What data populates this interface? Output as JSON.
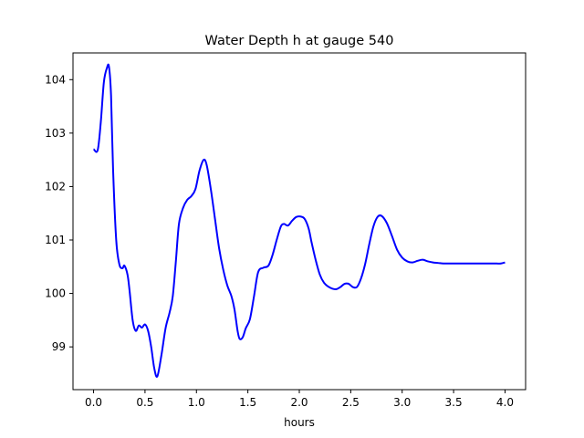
{
  "chart_data": {
    "type": "line",
    "title": "Water Depth h at gauge 540",
    "xlabel": "hours",
    "ylabel": "",
    "xlim": [
      -0.2,
      4.2
    ],
    "ylim": [
      98.2,
      104.5
    ],
    "xticks": [
      0.0,
      0.5,
      1.0,
      1.5,
      2.0,
      2.5,
      3.0,
      3.5,
      4.0
    ],
    "xtick_labels": [
      "0.0",
      "0.5",
      "1.0",
      "1.5",
      "2.0",
      "2.5",
      "3.0",
      "3.5",
      "4.0"
    ],
    "yticks": [
      99,
      100,
      101,
      102,
      103,
      104
    ],
    "ytick_labels": [
      "99",
      "100",
      "101",
      "102",
      "103",
      "104"
    ],
    "grid": false,
    "series": [
      {
        "color": "#0000ff",
        "x": [
          0.0,
          0.04,
          0.07,
          0.1,
          0.13,
          0.15,
          0.17,
          0.19,
          0.22,
          0.25,
          0.28,
          0.3,
          0.33,
          0.35,
          0.38,
          0.41,
          0.44,
          0.47,
          0.5,
          0.53,
          0.56,
          0.59,
          0.62,
          0.66,
          0.7,
          0.74,
          0.77,
          0.8,
          0.83,
          0.87,
          0.91,
          0.95,
          0.99,
          1.03,
          1.07,
          1.1,
          1.14,
          1.18,
          1.22,
          1.26,
          1.3,
          1.34,
          1.37,
          1.4,
          1.42,
          1.45,
          1.48,
          1.52,
          1.56,
          1.6,
          1.65,
          1.7,
          1.74,
          1.78,
          1.82,
          1.85,
          1.89,
          1.93,
          1.97,
          2.01,
          2.05,
          2.09,
          2.12,
          2.16,
          2.2,
          2.24,
          2.28,
          2.32,
          2.36,
          2.4,
          2.44,
          2.48,
          2.52,
          2.56,
          2.6,
          2.64,
          2.68,
          2.72,
          2.76,
          2.8,
          2.85,
          2.9,
          2.95,
          3.0,
          3.05,
          3.1,
          3.15,
          3.2,
          3.25,
          3.3,
          3.35,
          3.4,
          3.45,
          3.5,
          3.55,
          3.6,
          3.65,
          3.7,
          3.73,
          3.76,
          3.8,
          3.84,
          3.88,
          3.92,
          3.96,
          4.0
        ],
        "y": [
          102.7,
          102.68,
          103.2,
          103.95,
          104.22,
          104.24,
          103.7,
          102.3,
          101.0,
          100.55,
          100.47,
          100.52,
          100.35,
          100.05,
          99.5,
          99.3,
          99.4,
          99.36,
          99.42,
          99.3,
          99.0,
          98.6,
          98.45,
          98.85,
          99.35,
          99.65,
          99.95,
          100.6,
          101.3,
          101.6,
          101.75,
          101.82,
          101.95,
          102.3,
          102.5,
          102.4,
          101.95,
          101.4,
          100.85,
          100.45,
          100.15,
          99.95,
          99.7,
          99.3,
          99.15,
          99.18,
          99.35,
          99.52,
          99.95,
          100.4,
          100.48,
          100.52,
          100.72,
          101.0,
          101.25,
          101.3,
          101.27,
          101.36,
          101.43,
          101.44,
          101.4,
          101.22,
          100.95,
          100.62,
          100.35,
          100.2,
          100.13,
          100.09,
          100.08,
          100.12,
          100.18,
          100.18,
          100.12,
          100.12,
          100.28,
          100.55,
          100.92,
          101.25,
          101.43,
          101.45,
          101.32,
          101.08,
          100.82,
          100.67,
          100.6,
          100.58,
          100.61,
          100.63,
          100.6,
          100.58,
          100.57,
          100.56,
          100.56,
          100.56,
          100.56,
          100.56,
          100.56,
          100.56,
          100.56,
          100.56,
          100.56,
          100.56,
          100.56,
          100.56,
          100.56,
          100.58
        ]
      }
    ]
  }
}
